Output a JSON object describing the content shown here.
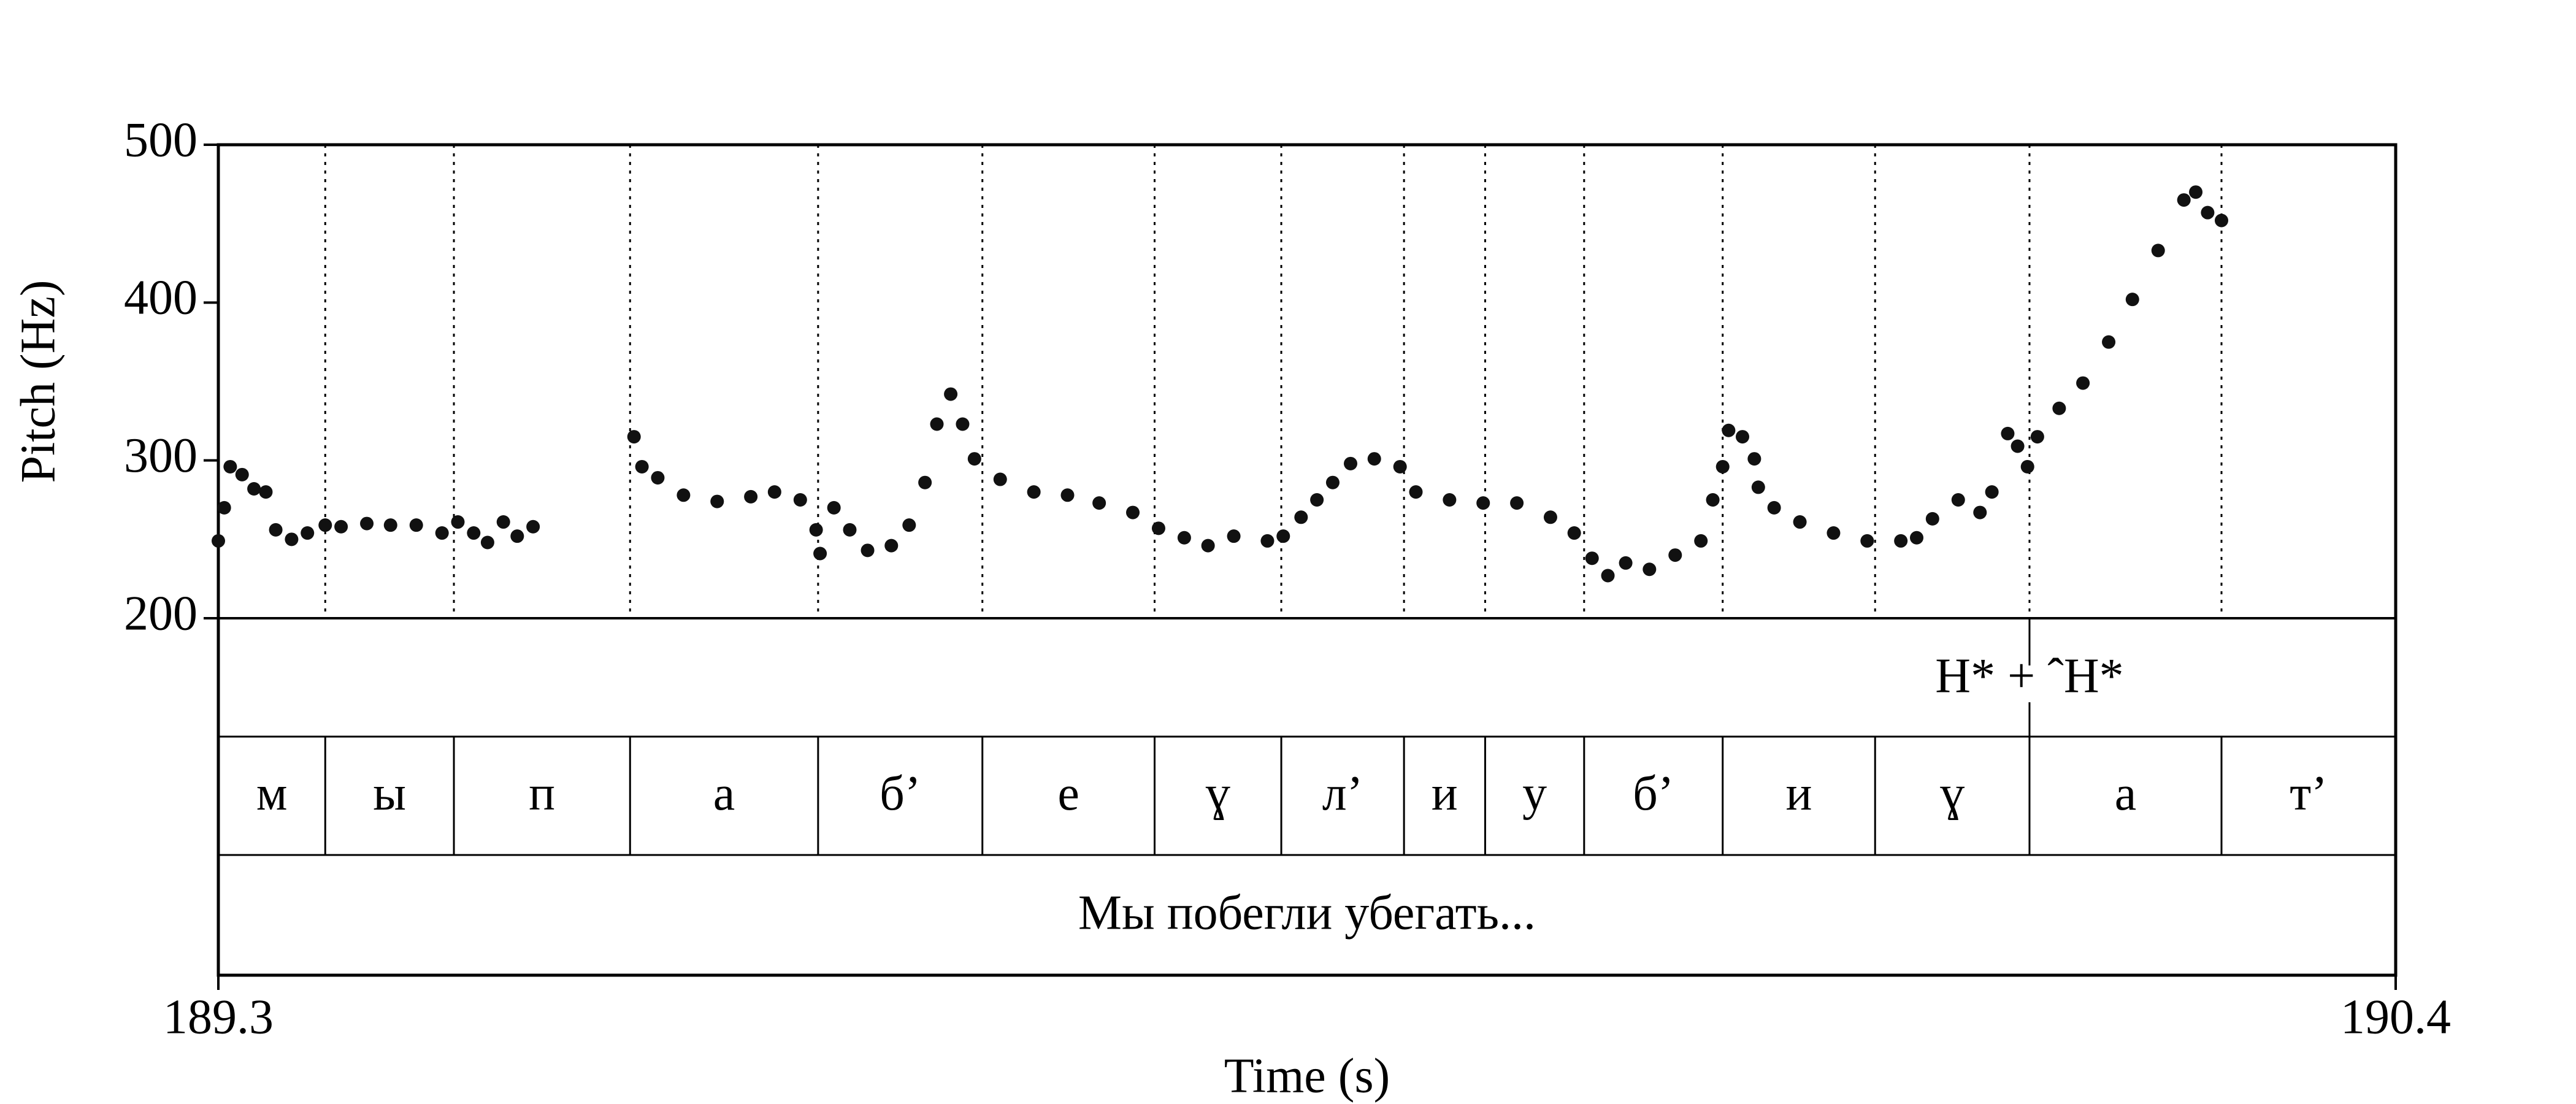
{
  "chart_data": {
    "type": "scatter",
    "x_label": "Time (s)",
    "y_label": "Pitch (Hz)",
    "xlim": [
      189.3,
      190.4
    ],
    "xticks": [
      189.3,
      190.4
    ],
    "ylim": [
      200,
      500
    ],
    "yticks": [
      200,
      300,
      400,
      500
    ],
    "color": "#111111",
    "x": [
      189.3,
      189.303,
      189.306,
      189.312,
      189.318,
      189.324,
      189.329,
      189.337,
      189.345,
      189.354,
      189.362,
      189.375,
      189.387,
      189.4,
      189.413,
      189.421,
      189.429,
      189.436,
      189.444,
      189.451,
      189.459,
      189.51,
      189.514,
      189.522,
      189.535,
      189.552,
      189.569,
      189.581,
      189.594,
      189.602,
      189.604,
      189.611,
      189.619,
      189.628,
      189.64,
      189.649,
      189.657,
      189.663,
      189.67,
      189.676,
      189.682,
      189.695,
      189.712,
      189.729,
      189.745,
      189.762,
      189.775,
      189.788,
      189.8,
      189.813,
      189.83,
      189.838,
      189.847,
      189.855,
      189.863,
      189.872,
      189.884,
      189.897,
      189.905,
      189.922,
      189.939,
      189.956,
      189.973,
      189.985,
      189.994,
      190.002,
      190.011,
      190.023,
      190.036,
      190.049,
      190.055,
      190.06,
      190.063,
      190.07,
      190.076,
      190.078,
      190.086,
      190.099,
      190.116,
      190.133,
      190.15,
      190.158,
      190.166,
      190.179,
      190.19,
      190.196,
      190.204,
      190.209,
      190.214,
      190.219,
      190.23,
      190.242,
      190.255,
      190.267,
      190.28,
      190.293,
      190.299,
      190.305,
      190.312
    ],
    "values": [
      249,
      270,
      296,
      291,
      282,
      280,
      256,
      250,
      254,
      259,
      258,
      260,
      259,
      259,
      254,
      261,
      254,
      248,
      261,
      252,
      258,
      315,
      296,
      289,
      278,
      274,
      277,
      280,
      275,
      256,
      241,
      270,
      256,
      243,
      246,
      259,
      286,
      323,
      342,
      323,
      301,
      288,
      280,
      278,
      273,
      267,
      257,
      251,
      246,
      252,
      249,
      252,
      264,
      275,
      286,
      298,
      301,
      296,
      280,
      275,
      273,
      273,
      264,
      254,
      238,
      227,
      235,
      231,
      240,
      249,
      275,
      296,
      319,
      315,
      301,
      283,
      270,
      261,
      254,
      249,
      249,
      251,
      263,
      275,
      267,
      280,
      317,
      309,
      296,
      315,
      333,
      349,
      375,
      402,
      433,
      465,
      470,
      457,
      452
    ],
    "tone_tier": {
      "points": [
        {
          "time": 190.215,
          "label": "H* + ˆH*"
        }
      ]
    },
    "segment_tier": {
      "boundaries": [
        189.354,
        189.419,
        189.508,
        189.603,
        189.686,
        189.773,
        189.837,
        189.899,
        189.94,
        189.99,
        190.06,
        190.137,
        190.215,
        190.312
      ],
      "labels": [
        "м",
        "ы",
        "п",
        "а",
        "б’",
        "е",
        "ɣ",
        "л’",
        "и",
        "у",
        "б’",
        "и",
        "ɣ",
        "а",
        "т’"
      ]
    },
    "sentence_tier": {
      "label": "Мы побегли убегать..."
    }
  }
}
